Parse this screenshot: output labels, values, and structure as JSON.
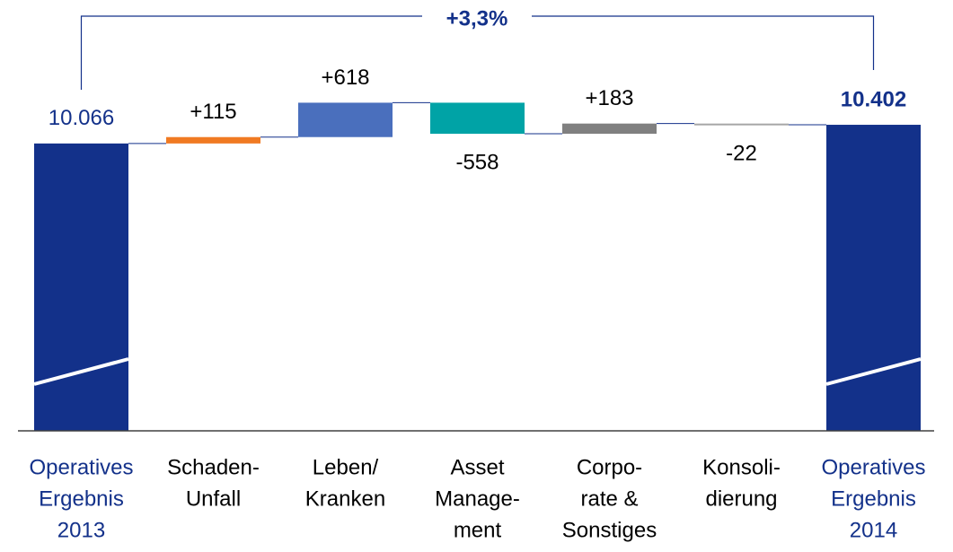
{
  "chart_data": {
    "type": "waterfall",
    "categories": [
      [
        "Operatives",
        "Ergebnis",
        "2013"
      ],
      [
        "Schaden-",
        "Unfall"
      ],
      [
        "Leben/",
        "Kranken"
      ],
      [
        "Asset",
        "Manage-",
        "ment"
      ],
      [
        "Corpo-",
        "rate &",
        "Sonstiges"
      ],
      [
        "Konsoli-",
        "dierung"
      ],
      [
        "Operatives",
        "Ergebnis",
        "2014"
      ]
    ],
    "values": [
      10066,
      115,
      618,
      -558,
      183,
      -22,
      10402
    ],
    "value_labels": [
      "10.066",
      "+115",
      "+618",
      "-558",
      "+183",
      "-22",
      "10.402"
    ],
    "is_total": [
      true,
      false,
      false,
      false,
      false,
      false,
      true
    ],
    "colors": [
      "#13318a",
      "#f07a22",
      "#4a6fbd",
      "#00a3a6",
      "#808080",
      "#a6a6a6",
      "#13318a"
    ],
    "ylim": [
      4900,
      12000
    ],
    "annotation": "+3,3%"
  }
}
